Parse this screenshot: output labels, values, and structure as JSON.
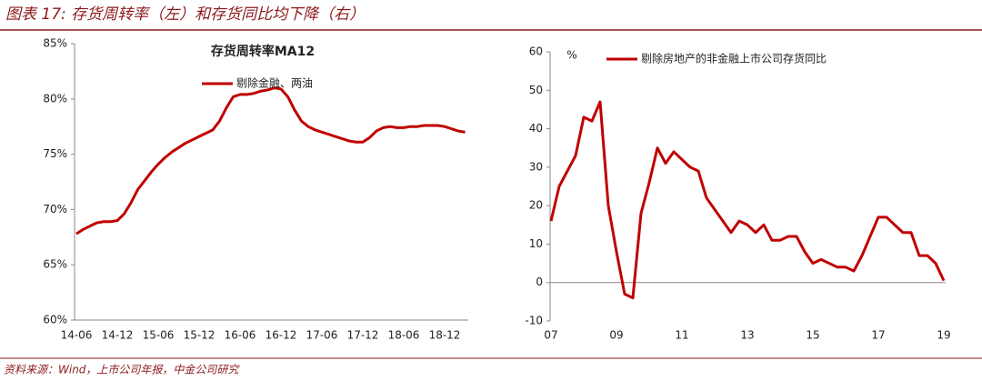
{
  "header": {
    "title": "图表 17: 存货周转率（左）和存货同比均下降（右）"
  },
  "chart_data": [
    {
      "type": "line",
      "title": "存货周转率MA12",
      "categories": [
        "14-06",
        null,
        null,
        null,
        null,
        null,
        "14-12",
        null,
        null,
        null,
        null,
        null,
        "15-06",
        null,
        null,
        null,
        null,
        null,
        "15-12",
        null,
        null,
        null,
        null,
        null,
        "16-06",
        null,
        null,
        null,
        null,
        null,
        "16-12",
        null,
        null,
        null,
        null,
        null,
        "17-06",
        null,
        null,
        null,
        null,
        null,
        "17-12",
        null,
        null,
        null,
        null,
        null,
        "18-06",
        null,
        null,
        null,
        null,
        null,
        "18-12",
        null,
        null,
        null
      ],
      "series": [
        {
          "name": "剔除金融、两油",
          "color": "#c00000",
          "values": [
            67.8,
            68.2,
            68.5,
            68.8,
            68.9,
            68.9,
            69.0,
            69.6,
            70.6,
            71.8,
            72.6,
            73.4,
            74.1,
            74.7,
            75.2,
            75.6,
            76.0,
            76.3,
            76.6,
            76.9,
            77.2,
            78.0,
            79.2,
            80.2,
            80.4,
            80.4,
            80.5,
            80.7,
            80.8,
            81.0,
            80.9,
            80.2,
            79.0,
            78.0,
            77.5,
            77.2,
            77.0,
            76.8,
            76.6,
            76.4,
            76.2,
            76.1,
            76.1,
            76.5,
            77.1,
            77.4,
            77.5,
            77.4,
            77.4,
            77.5,
            77.5,
            77.6,
            77.6,
            77.6,
            77.5,
            77.3,
            77.1,
            77.0
          ]
        }
      ],
      "ylim": [
        60,
        85
      ],
      "yticks": [
        {
          "value": 60,
          "label": "60%"
        },
        {
          "value": 65,
          "label": "65%"
        },
        {
          "value": 70,
          "label": "70%"
        },
        {
          "value": 75,
          "label": "75%"
        },
        {
          "value": 80,
          "label": "80%"
        },
        {
          "value": 85,
          "label": "85%"
        }
      ],
      "grid": false
    },
    {
      "type": "line",
      "y_unit": "%",
      "categories": [
        "07",
        null,
        null,
        null,
        null,
        null,
        null,
        null,
        "09",
        null,
        null,
        null,
        null,
        null,
        null,
        null,
        "11",
        null,
        null,
        null,
        null,
        null,
        null,
        null,
        "13",
        null,
        null,
        null,
        null,
        null,
        null,
        null,
        "15",
        null,
        null,
        null,
        null,
        null,
        null,
        null,
        "17",
        null,
        null,
        null,
        null,
        null,
        null,
        null,
        "19"
      ],
      "series": [
        {
          "name": "剔除房地产的非金融上市公司存货同比",
          "color": "#c00000",
          "values": [
            16,
            25,
            29,
            33,
            43,
            42,
            47,
            20,
            8,
            -3,
            -4,
            18,
            26,
            35,
            31,
            34,
            32,
            30,
            29,
            22,
            19,
            16,
            13,
            16,
            15,
            13,
            15,
            11,
            11,
            12,
            12,
            8,
            5,
            6,
            5,
            4,
            4,
            3,
            7,
            12,
            17,
            17,
            15,
            13,
            13,
            7,
            7,
            5,
            0.5
          ]
        }
      ],
      "ylim": [
        -10,
        60
      ],
      "yticks": [
        -10,
        0,
        10,
        20,
        30,
        40,
        50,
        60
      ],
      "grid": false
    }
  ],
  "footer": {
    "source": "资料来源：Wind，上市公司年报，中金公司研究"
  }
}
